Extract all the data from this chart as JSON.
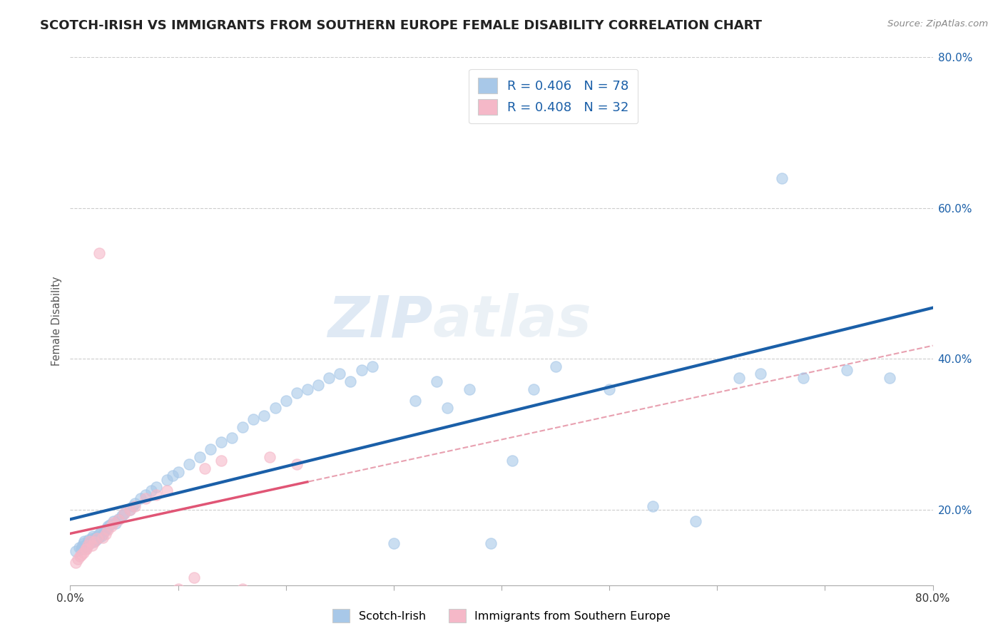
{
  "title": "SCOTCH-IRISH VS IMMIGRANTS FROM SOUTHERN EUROPE FEMALE DISABILITY CORRELATION CHART",
  "source_text": "Source: ZipAtlas.com",
  "xlabel": "",
  "ylabel": "Female Disability",
  "xlim": [
    0.0,
    0.8
  ],
  "ylim": [
    0.1,
    0.8
  ],
  "legend_labels": [
    "Scotch-Irish",
    "Immigrants from Southern Europe"
  ],
  "R_blue": 0.406,
  "N_blue": 78,
  "R_pink": 0.408,
  "N_pink": 32,
  "color_blue": "#a8c8e8",
  "color_pink": "#f5b8c8",
  "color_blue_line": "#1a5fa8",
  "color_pink_line": "#e05575",
  "color_trendline_dashed": "#e8a0b0",
  "watermark_left": "ZIP",
  "watermark_right": "atlas",
  "title_color": "#222222",
  "title_fontsize": 13,
  "ytick_values": [
    0.2,
    0.4,
    0.6,
    0.8
  ],
  "blue_x": [
    0.005,
    0.008,
    0.01,
    0.011,
    0.012,
    0.013,
    0.014,
    0.015,
    0.016,
    0.017,
    0.018,
    0.019,
    0.02,
    0.021,
    0.022,
    0.023,
    0.024,
    0.025,
    0.026,
    0.027,
    0.028,
    0.029,
    0.03,
    0.032,
    0.034,
    0.035,
    0.037,
    0.04,
    0.042,
    0.045,
    0.048,
    0.05,
    0.055,
    0.058,
    0.06,
    0.065,
    0.07,
    0.075,
    0.08,
    0.09,
    0.095,
    0.1,
    0.11,
    0.12,
    0.13,
    0.14,
    0.15,
    0.16,
    0.17,
    0.18,
    0.19,
    0.2,
    0.21,
    0.22,
    0.23,
    0.24,
    0.25,
    0.26,
    0.27,
    0.28,
    0.3,
    0.32,
    0.34,
    0.35,
    0.37,
    0.39,
    0.41,
    0.43,
    0.45,
    0.5,
    0.54,
    0.58,
    0.62,
    0.64,
    0.66,
    0.68,
    0.72,
    0.76
  ],
  "blue_y": [
    0.145,
    0.15,
    0.148,
    0.152,
    0.155,
    0.158,
    0.15,
    0.153,
    0.156,
    0.16,
    0.155,
    0.158,
    0.162,
    0.165,
    0.158,
    0.162,
    0.16,
    0.165,
    0.163,
    0.168,
    0.17,
    0.165,
    0.168,
    0.172,
    0.175,
    0.178,
    0.18,
    0.185,
    0.182,
    0.188,
    0.192,
    0.195,
    0.2,
    0.205,
    0.208,
    0.215,
    0.22,
    0.225,
    0.23,
    0.24,
    0.245,
    0.25,
    0.26,
    0.27,
    0.28,
    0.29,
    0.295,
    0.31,
    0.32,
    0.325,
    0.335,
    0.345,
    0.355,
    0.36,
    0.365,
    0.375,
    0.38,
    0.37,
    0.385,
    0.39,
    0.155,
    0.345,
    0.37,
    0.335,
    0.36,
    0.155,
    0.265,
    0.36,
    0.39,
    0.36,
    0.205,
    0.185,
    0.375,
    0.38,
    0.64,
    0.375,
    0.385,
    0.375
  ],
  "pink_x": [
    0.005,
    0.007,
    0.009,
    0.01,
    0.012,
    0.014,
    0.015,
    0.016,
    0.018,
    0.02,
    0.022,
    0.025,
    0.027,
    0.03,
    0.033,
    0.035,
    0.038,
    0.04,
    0.045,
    0.05,
    0.055,
    0.06,
    0.07,
    0.08,
    0.09,
    0.1,
    0.115,
    0.125,
    0.14,
    0.16,
    0.185,
    0.21
  ],
  "pink_y": [
    0.13,
    0.135,
    0.138,
    0.14,
    0.143,
    0.148,
    0.148,
    0.153,
    0.158,
    0.153,
    0.157,
    0.162,
    0.54,
    0.163,
    0.168,
    0.173,
    0.178,
    0.183,
    0.187,
    0.195,
    0.2,
    0.205,
    0.215,
    0.22,
    0.225,
    0.095,
    0.11,
    0.255,
    0.265,
    0.095,
    0.27,
    0.26
  ]
}
